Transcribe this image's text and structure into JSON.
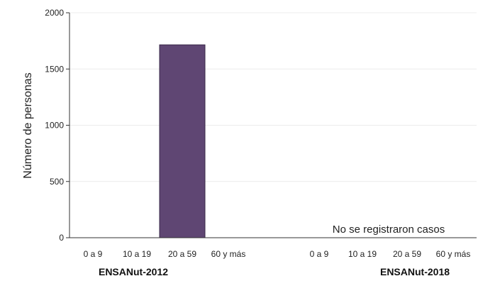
{
  "chart_data": {
    "type": "bar",
    "ylabel": "Número de personas",
    "ylim": [
      0,
      2000
    ],
    "yticks": [
      "0",
      "500",
      "1000",
      "1500",
      "2000"
    ],
    "grid": true,
    "groups": [
      {
        "label": "ENSANut-2012",
        "categories": [
          "0 a 9",
          "10 a 19",
          "20 a 59",
          "60 y más"
        ],
        "values": [
          0,
          0,
          1715,
          0
        ]
      },
      {
        "label": "ENSANut-2018",
        "categories": [
          "0 a 9",
          "10 a 19",
          "20 a 59",
          "60 y más"
        ],
        "values": [
          0,
          0,
          0,
          0
        ]
      }
    ],
    "annotation": "No se registraron casos",
    "bar_color": "#5f4673"
  }
}
